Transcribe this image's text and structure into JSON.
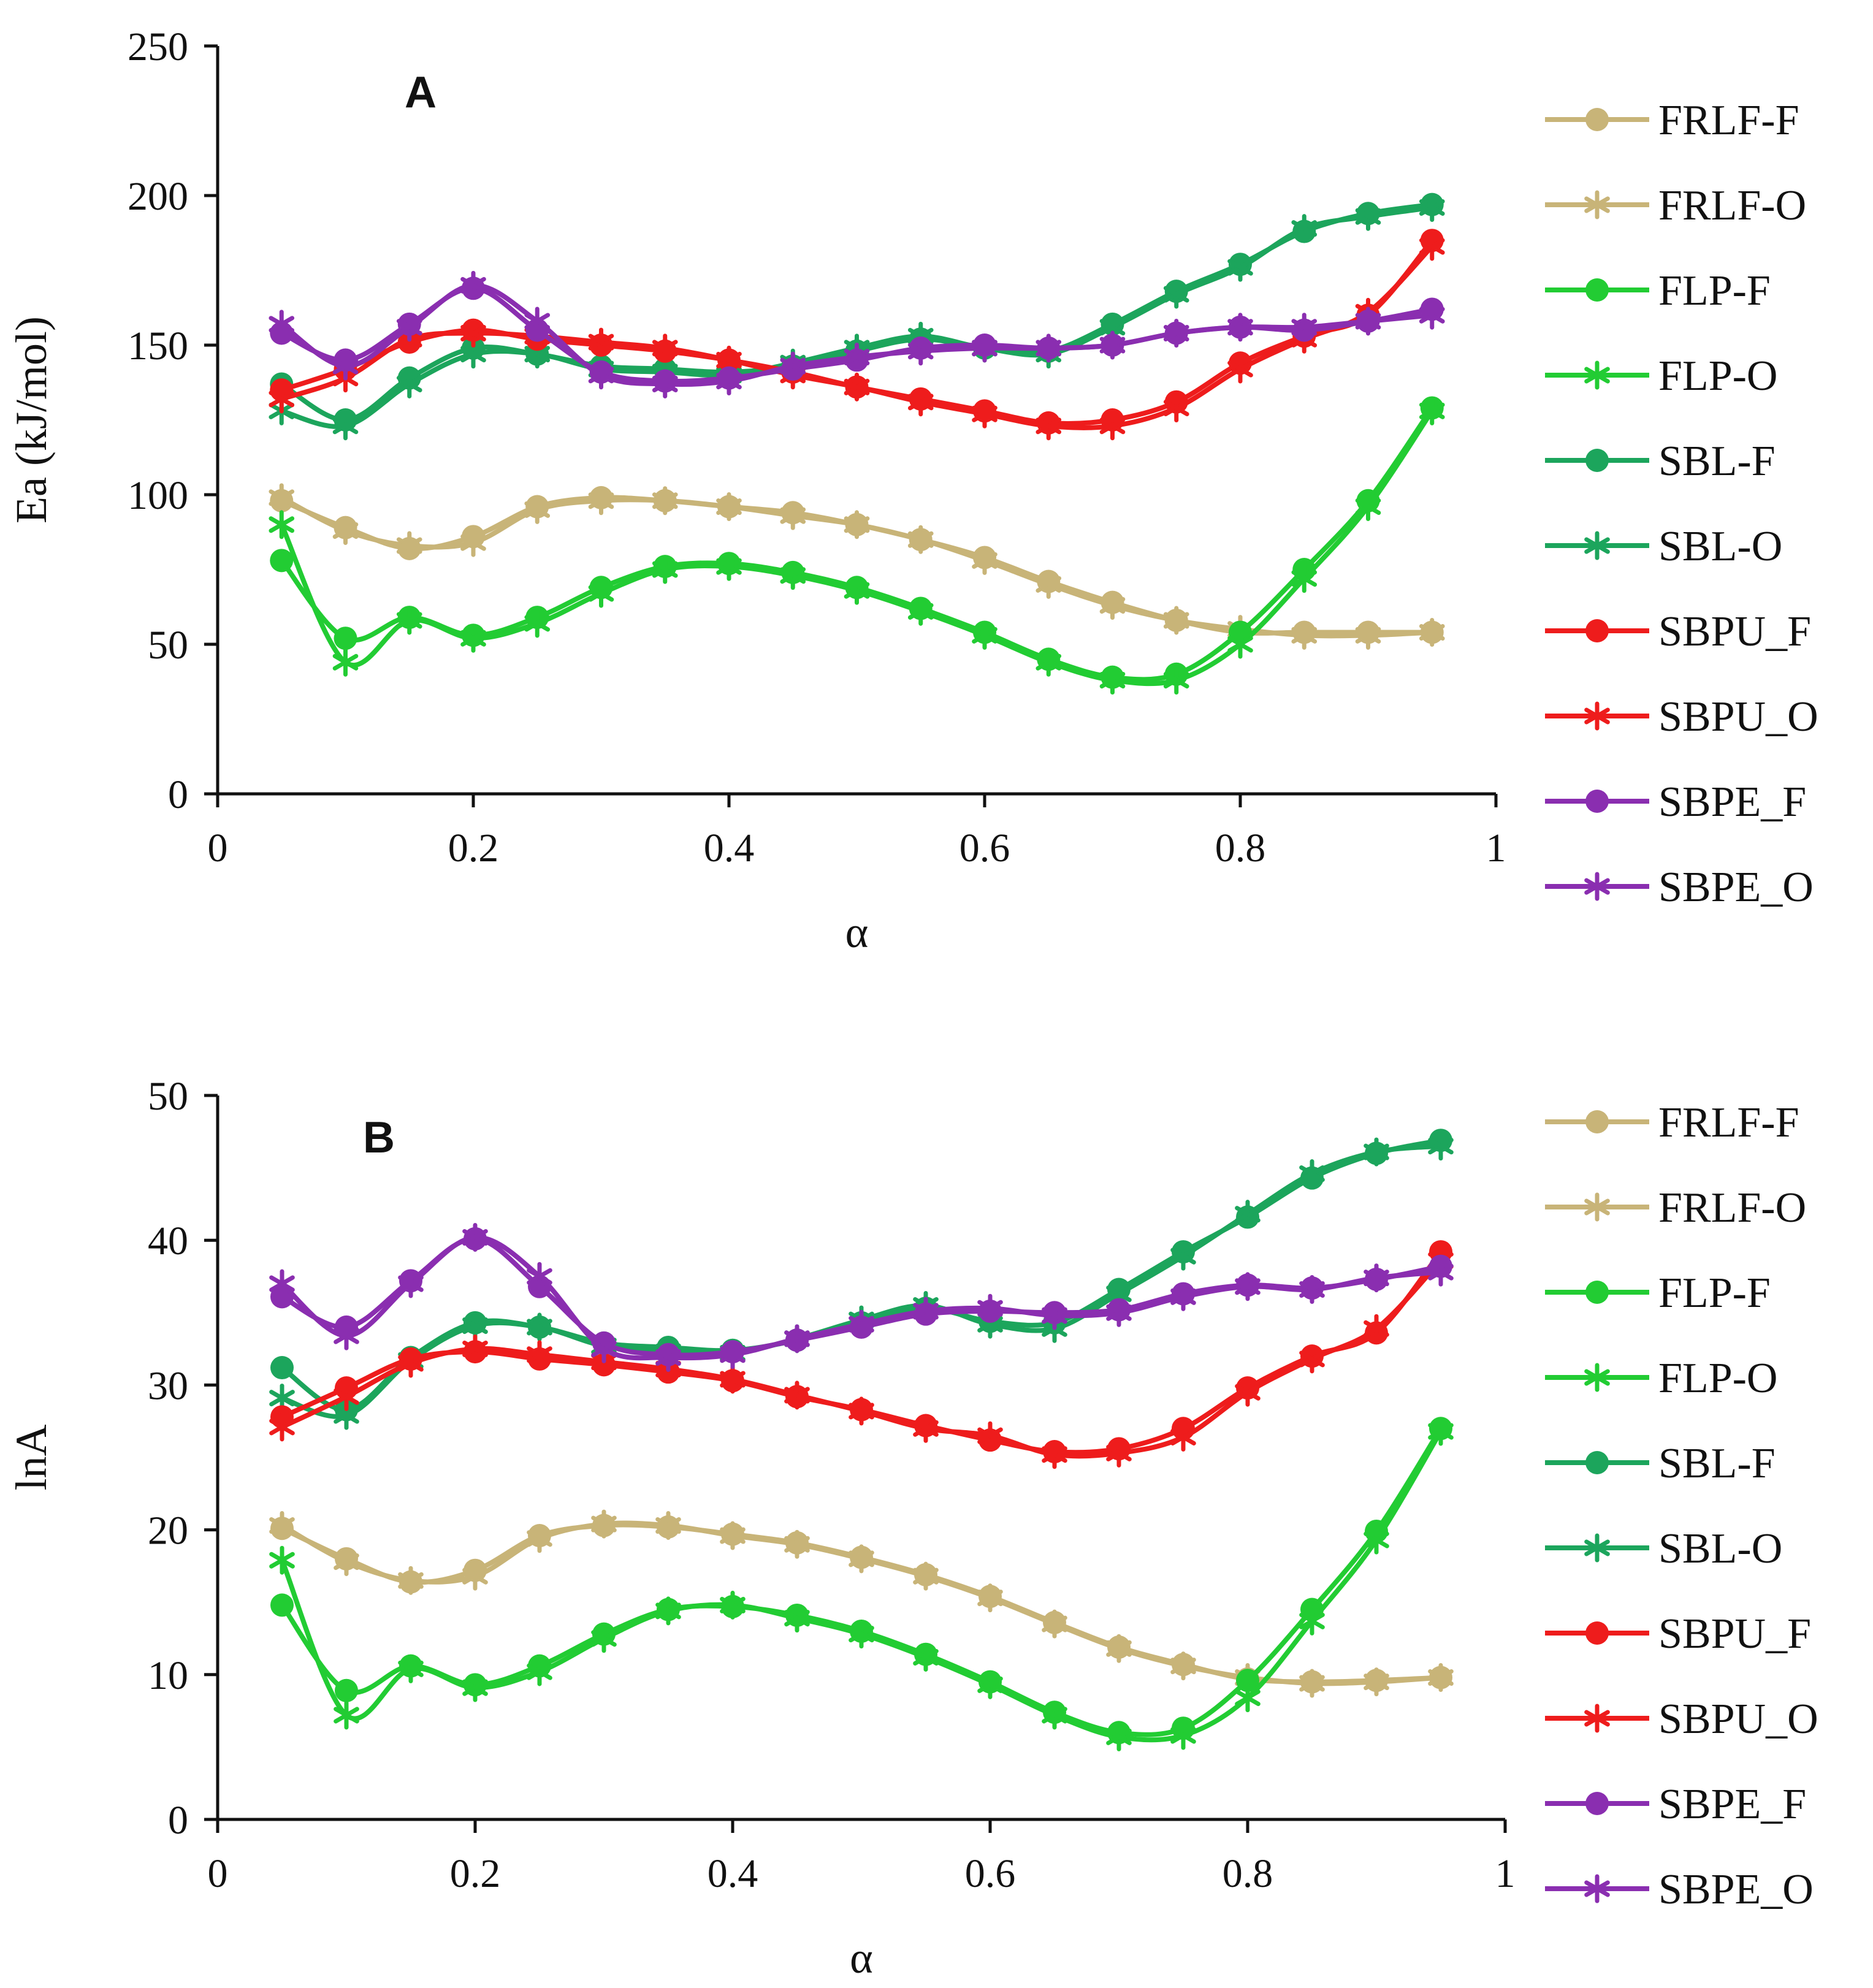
{
  "colors": {
    "FRLF": "#c8b478",
    "FLP": "#22cc33",
    "SBL": "#1ca55c",
    "SBPU": "#ee1c1c",
    "SBPE": "#8a2eb0"
  },
  "chart_data": [
    {
      "type": "line",
      "panel_label": "A",
      "xlabel": "α",
      "ylabel": "Ea (kJ/mol)",
      "xlim": [
        0,
        1
      ],
      "ylim": [
        0,
        250
      ],
      "xticks": [
        0,
        0.2,
        0.4,
        0.6,
        0.8,
        1
      ],
      "xtick_labels": [
        "0",
        "0.2",
        "0.4",
        "0.6",
        "0.8",
        "1"
      ],
      "yticks": [
        0,
        50,
        100,
        150,
        200,
        250
      ],
      "ytick_labels": [
        "0",
        "50",
        "100",
        "150",
        "200",
        "250"
      ],
      "legend_position": "right",
      "x": [
        0.05,
        0.1,
        0.15,
        0.2,
        0.25,
        0.3,
        0.35,
        0.4,
        0.45,
        0.5,
        0.55,
        0.6,
        0.65,
        0.7,
        0.75,
        0.8,
        0.85,
        0.9,
        0.95
      ],
      "series": [
        {
          "name": "FRLF-F",
          "group": "FRLF",
          "marker": "circle",
          "values": [
            98,
            89,
            82,
            86,
            96,
            99,
            98,
            96,
            94,
            90,
            85,
            79,
            71,
            64,
            58,
            54,
            54,
            54,
            54
          ]
        },
        {
          "name": "FRLF-O",
          "group": "FRLF",
          "marker": "star",
          "values": [
            99,
            88,
            83,
            84,
            95,
            98,
            98,
            96,
            93,
            90,
            85,
            78,
            70,
            63,
            58,
            55,
            53,
            53,
            54
          ]
        },
        {
          "name": "FLP-F",
          "group": "FLP",
          "marker": "circle",
          "values": [
            78,
            52,
            59,
            53,
            59,
            69,
            76,
            77,
            74,
            69,
            62,
            54,
            45,
            39,
            40,
            54,
            75,
            98,
            129
          ]
        },
        {
          "name": "FLP-O",
          "group": "FLP",
          "marker": "star",
          "values": [
            90,
            44,
            58,
            52,
            57,
            67,
            75,
            76,
            73,
            68,
            61,
            53,
            44,
            38,
            38,
            50,
            72,
            96,
            128
          ]
        },
        {
          "name": "SBL-F",
          "group": "SBL",
          "marker": "circle",
          "values": [
            137,
            125,
            139,
            149,
            147,
            143,
            142,
            141,
            143,
            148,
            152,
            149,
            148,
            157,
            168,
            177,
            188,
            194,
            197
          ]
        },
        {
          "name": "SBL-O",
          "group": "SBL",
          "marker": "star",
          "values": [
            128,
            123,
            137,
            147,
            147,
            142,
            141,
            140,
            144,
            149,
            153,
            149,
            147,
            156,
            167,
            176,
            189,
            193,
            196
          ]
        },
        {
          "name": "SBPU_F",
          "group": "SBPU",
          "marker": "circle",
          "values": [
            135,
            142,
            151,
            155,
            152,
            150,
            148,
            145,
            141,
            136,
            132,
            128,
            124,
            125,
            131,
            144,
            153,
            160,
            185
          ]
        },
        {
          "name": "SBPU_O",
          "group": "SBPU",
          "marker": "star",
          "values": [
            132,
            139,
            152,
            154,
            153,
            151,
            149,
            145,
            140,
            136,
            131,
            127,
            123,
            123,
            129,
            142,
            152,
            161,
            183
          ]
        },
        {
          "name": "SBPE_F",
          "group": "SBPE",
          "marker": "circle",
          "values": [
            154,
            145,
            157,
            169,
            155,
            141,
            138,
            139,
            142,
            145,
            149,
            150,
            149,
            150,
            154,
            156,
            155,
            158,
            162
          ]
        },
        {
          "name": "SBPE_O",
          "group": "SBPE",
          "marker": "star",
          "values": [
            157,
            143,
            156,
            170,
            158,
            140,
            137,
            138,
            143,
            146,
            148,
            149,
            149,
            150,
            154,
            156,
            156,
            158,
            160
          ]
        }
      ]
    },
    {
      "type": "line",
      "panel_label": "B",
      "xlabel": "α",
      "ylabel": "lnA",
      "xlim": [
        0,
        1
      ],
      "ylim": [
        0,
        50
      ],
      "xticks": [
        0,
        0.2,
        0.4,
        0.6,
        0.8,
        1
      ],
      "xtick_labels": [
        "0",
        "0.2",
        "0.4",
        "0.6",
        "0.8",
        "1"
      ],
      "yticks": [
        0,
        10,
        20,
        30,
        40,
        50
      ],
      "ytick_labels": [
        "0",
        "10",
        "20",
        "30",
        "40",
        "50"
      ],
      "legend_position": "right",
      "x": [
        0.05,
        0.1,
        0.15,
        0.2,
        0.25,
        0.3,
        0.35,
        0.4,
        0.45,
        0.5,
        0.55,
        0.6,
        0.65,
        0.7,
        0.75,
        0.8,
        0.85,
        0.9,
        0.95
      ],
      "series": [
        {
          "name": "FRLF-F",
          "group": "FRLF",
          "marker": "circle",
          "values": [
            20.1,
            18.0,
            16.4,
            17.2,
            19.6,
            20.3,
            20.2,
            19.7,
            19.1,
            18.1,
            16.9,
            15.4,
            13.6,
            11.9,
            10.7,
            9.7,
            9.5,
            9.6,
            9.8
          ]
        },
        {
          "name": "FRLF-O",
          "group": "FRLF",
          "marker": "star",
          "values": [
            20.3,
            17.8,
            16.5,
            16.8,
            19.4,
            20.4,
            20.3,
            19.6,
            19.0,
            18.0,
            16.8,
            15.3,
            13.5,
            11.8,
            10.6,
            9.8,
            9.4,
            9.5,
            9.8
          ]
        },
        {
          "name": "FLP-F",
          "group": "FLP",
          "marker": "circle",
          "values": [
            14.8,
            8.9,
            10.6,
            9.3,
            10.6,
            12.8,
            14.5,
            14.7,
            14.1,
            13.0,
            11.4,
            9.5,
            7.4,
            6.0,
            6.3,
            9.6,
            14.5,
            19.9,
            27.0
          ]
        },
        {
          "name": "FLP-O",
          "group": "FLP",
          "marker": "star",
          "values": [
            17.9,
            7.2,
            10.4,
            9.1,
            10.2,
            12.5,
            14.4,
            14.8,
            13.9,
            12.8,
            11.2,
            9.3,
            7.2,
            5.7,
            5.8,
            8.4,
            13.7,
            19.3,
            26.8
          ]
        },
        {
          "name": "SBL-F",
          "group": "SBL",
          "marker": "circle",
          "values": [
            31.2,
            28.3,
            31.9,
            34.3,
            34.0,
            32.9,
            32.6,
            32.4,
            33.1,
            34.3,
            35.3,
            34.4,
            34.3,
            36.6,
            39.2,
            41.6,
            44.3,
            46.0,
            46.9
          ]
        },
        {
          "name": "SBL-O",
          "group": "SBL",
          "marker": "star",
          "values": [
            29.1,
            27.9,
            31.7,
            34.1,
            34.0,
            32.7,
            32.3,
            32.2,
            33.2,
            34.5,
            35.5,
            34.2,
            33.9,
            36.3,
            38.9,
            41.8,
            44.6,
            46.1,
            46.5
          ]
        },
        {
          "name": "SBPU_F",
          "group": "SBPU",
          "marker": "circle",
          "values": [
            27.8,
            29.8,
            31.8,
            32.3,
            31.8,
            31.4,
            30.9,
            30.3,
            29.2,
            28.3,
            27.2,
            26.2,
            25.4,
            25.6,
            27.0,
            29.8,
            32.0,
            33.6,
            39.2
          ]
        },
        {
          "name": "SBPU_O",
          "group": "SBPU",
          "marker": "star",
          "values": [
            27.1,
            29.2,
            31.5,
            32.5,
            32.1,
            31.6,
            31.1,
            30.4,
            29.3,
            28.2,
            27.0,
            26.5,
            25.2,
            25.3,
            26.4,
            29.5,
            31.8,
            33.9,
            38.6
          ]
        },
        {
          "name": "SBPE_F",
          "group": "SBPE",
          "marker": "circle",
          "values": [
            36.1,
            34.0,
            37.2,
            40.1,
            36.8,
            32.9,
            32.1,
            32.3,
            33.1,
            34.0,
            34.9,
            35.1,
            35.0,
            35.2,
            36.3,
            36.9,
            36.7,
            37.3,
            38.2
          ]
        },
        {
          "name": "SBPE_O",
          "group": "SBPE",
          "marker": "star",
          "values": [
            37.0,
            33.4,
            37.0,
            40.2,
            37.5,
            32.5,
            31.9,
            32.1,
            33.2,
            34.2,
            35.1,
            35.3,
            34.8,
            35.0,
            36.1,
            36.8,
            36.6,
            37.4,
            37.8
          ]
        }
      ]
    }
  ]
}
